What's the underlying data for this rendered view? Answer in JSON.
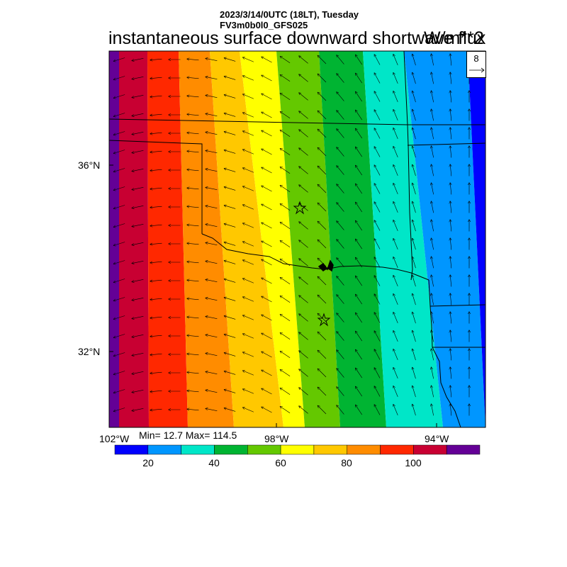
{
  "header": {
    "datetime": "2023/3/14/0UTC (18LT), Tuesday",
    "model": "FV3m0b0l0_GFS025"
  },
  "title": "instantaneous surface downward shortwave flux",
  "units": "W/m**2",
  "vector_key": {
    "value": "8"
  },
  "axes": {
    "lat_labels": [
      "36°N",
      "32°N"
    ],
    "lon_labels": [
      "102°W",
      "98°W",
      "94°W"
    ]
  },
  "stats": "Min= 12.7 Max= 114.5",
  "colorbar": {
    "colors": [
      "#0000ff",
      "#0096ff",
      "#00e6c8",
      "#00b432",
      "#64c800",
      "#ffff00",
      "#ffc800",
      "#ff8c00",
      "#ff2800",
      "#c80032",
      "#640096"
    ],
    "labels": [
      "20",
      "40",
      "60",
      "80",
      "100"
    ]
  },
  "map": {
    "band_colors": [
      "#640096",
      "#c80032",
      "#ff2800",
      "#ff8c00",
      "#ffc800",
      "#ffff00",
      "#64c800",
      "#00b432",
      "#00e6c8",
      "#0096ff",
      "#0000ff"
    ],
    "markers": [
      "star",
      "star"
    ]
  }
}
